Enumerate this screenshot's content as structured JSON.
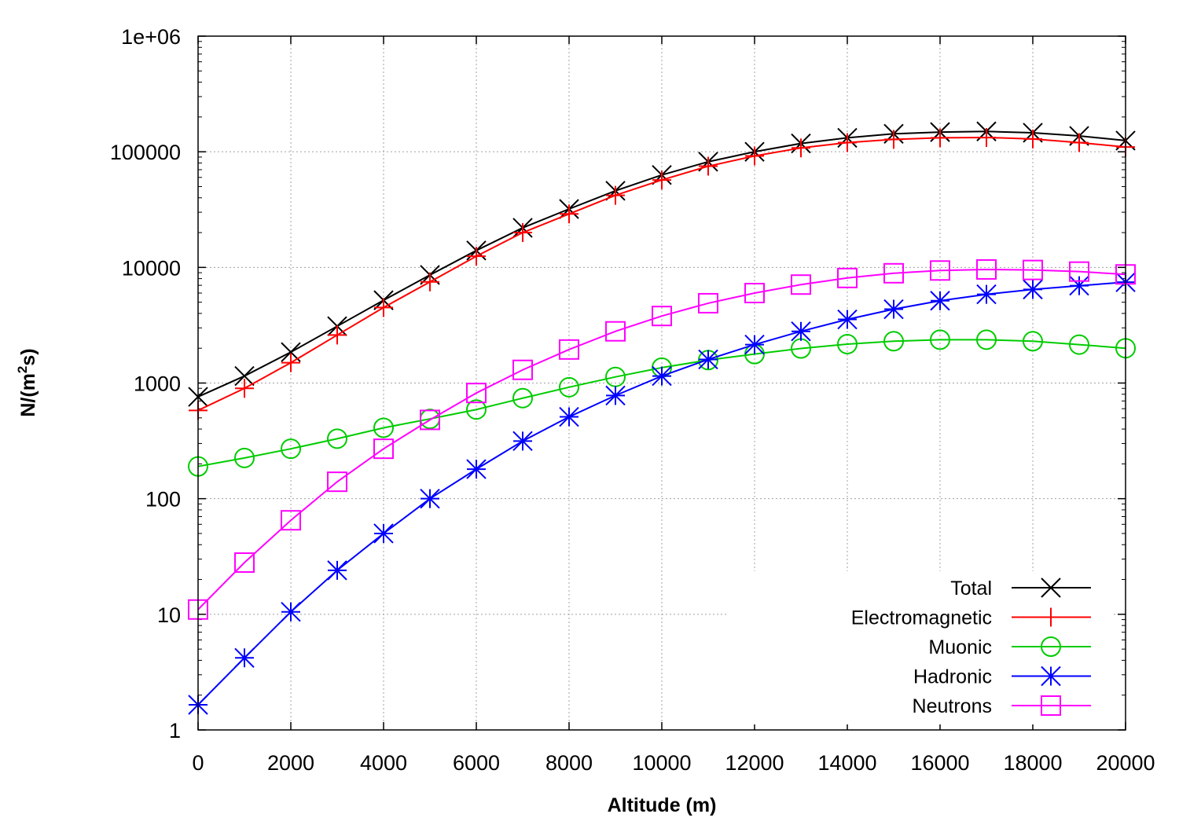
{
  "chart_data": {
    "type": "line",
    "xlabel": "Altitude (m)",
    "ylabel_main": "N/(m",
    "ylabel_sup": "2",
    "ylabel_tail": "s)",
    "xlim": [
      0,
      20000
    ],
    "ylim": [
      1,
      1000000
    ],
    "yscale": "log",
    "grid": true,
    "legend_position": "bottom-right",
    "x_ticks": [
      "0",
      "2000",
      "4000",
      "6000",
      "8000",
      "10000",
      "12000",
      "14000",
      "16000",
      "18000",
      "20000"
    ],
    "y_ticks": [
      "1",
      "10",
      "100",
      "1000",
      "10000",
      "100000",
      "1e+06"
    ],
    "x": [
      0,
      1000,
      2000,
      3000,
      4000,
      5000,
      6000,
      7000,
      8000,
      9000,
      10000,
      11000,
      12000,
      13000,
      14000,
      15000,
      16000,
      17000,
      18000,
      19000,
      20000
    ],
    "series": [
      {
        "name": "Total",
        "color": "#000000",
        "marker": "x",
        "values": [
          760,
          1150,
          1850,
          3100,
          5200,
          8600,
          14000,
          22000,
          32000,
          46000,
          63000,
          82000,
          100000,
          118000,
          132000,
          143000,
          148000,
          150000,
          146000,
          137000,
          125000
        ]
      },
      {
        "name": "Electromagnetic",
        "color": "#ff0000",
        "marker": "plus",
        "values": [
          580,
          900,
          1500,
          2600,
          4500,
          7500,
          12500,
          20000,
          29000,
          42000,
          57000,
          75000,
          92000,
          108000,
          120000,
          128000,
          132000,
          133000,
          129000,
          120000,
          110000
        ]
      },
      {
        "name": "Muonic",
        "color": "#00cc00",
        "marker": "circle",
        "values": [
          190,
          225,
          270,
          330,
          410,
          490,
          590,
          740,
          920,
          1130,
          1360,
          1580,
          1780,
          1990,
          2170,
          2300,
          2370,
          2370,
          2300,
          2150,
          2000
        ]
      },
      {
        "name": "Hadronic",
        "color": "#0000ff",
        "marker": "star",
        "values": [
          1.65,
          4.2,
          10.5,
          24,
          50,
          100,
          180,
          315,
          510,
          780,
          1150,
          1600,
          2150,
          2800,
          3550,
          4350,
          5150,
          5850,
          6450,
          6950,
          7450
        ]
      },
      {
        "name": "Neutrons",
        "color": "#ff00ff",
        "marker": "square",
        "values": [
          11,
          28,
          65,
          140,
          270,
          480,
          820,
          1300,
          1950,
          2800,
          3800,
          4900,
          6000,
          7100,
          8100,
          8900,
          9400,
          9600,
          9500,
          9200,
          8700
        ]
      }
    ]
  }
}
